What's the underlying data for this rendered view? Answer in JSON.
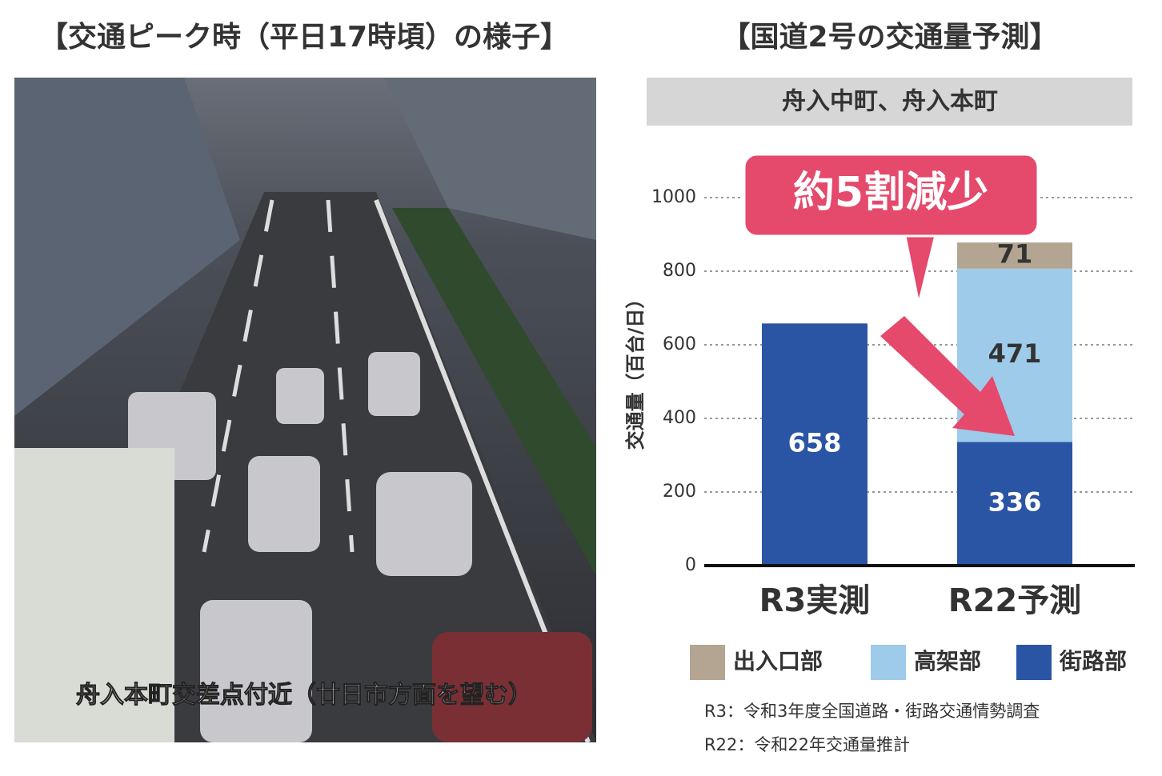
{
  "photo": {
    "title": "【交通ピーク時（平日17時頃）の様子】",
    "caption": "舟入本町交差点付近（廿日市方面を望む）"
  },
  "chart_data": {
    "type": "stacked_bar",
    "title": "【国道2号の交通量予測】",
    "subtitle": "舟入中町、舟入本町",
    "annotation": "約5割減少",
    "ylabel": "交通量（百台/日）",
    "categories": [
      "R3実測",
      "R22予測"
    ],
    "series": [
      {
        "name": "出入口部",
        "color": "#b3a592",
        "values": [
          null,
          71
        ]
      },
      {
        "name": "高架部",
        "color": "#9ecbea",
        "values": [
          null,
          471
        ]
      },
      {
        "name": "街路部",
        "color": "#2a55a5",
        "values": [
          658,
          336
        ]
      }
    ],
    "ylim": [
      0,
      1000
    ],
    "yticks": [
      0,
      200,
      400,
      600,
      800,
      1000
    ],
    "grid": true,
    "notes": [
      "R3：令和3年度全国道路・街路交通情勢調査",
      "R22：令和22年交通量推計"
    ]
  }
}
